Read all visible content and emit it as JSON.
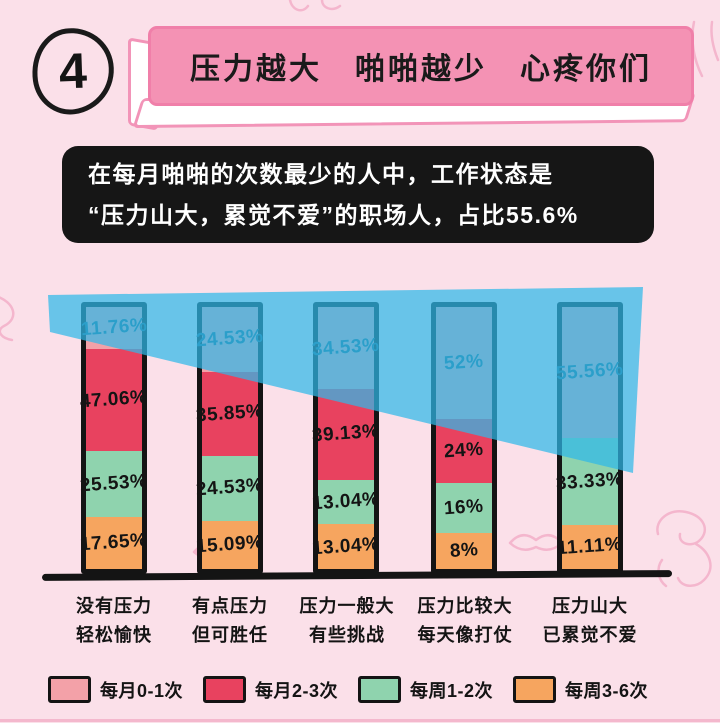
{
  "badge": {
    "number": "4"
  },
  "banner": {
    "title": "压力越大　啪啪越少　心疼你们"
  },
  "callout": {
    "line1": "在每月啪啪的次数最少的人中，工作状态是",
    "line2": "“压力山大，累觉不爱”的职场人，占比55.6%"
  },
  "chart_data": {
    "type": "bar",
    "stacked": true,
    "orientation": "vertical",
    "unit": "%",
    "grid": false,
    "categories": [
      [
        "没有压力",
        "轻松愉快"
      ],
      [
        "有点压力",
        "但可胜任"
      ],
      [
        "压力一般大",
        "有些挑战"
      ],
      [
        "压力比较大",
        "每天像打仗"
      ],
      [
        "压力山大",
        "已累觉不爱"
      ]
    ],
    "series": [
      {
        "name": "每月0-1次",
        "color": "#f3a1a8",
        "values": [
          11.76,
          24.53,
          34.53,
          52,
          55.56
        ],
        "labels": [
          "11.76%",
          "24.53%",
          "34.53%",
          "52%",
          "55.56%"
        ]
      },
      {
        "name": "每月2-3次",
        "color": "#e8425f",
        "values": [
          47.06,
          35.85,
          39.13,
          24,
          0
        ],
        "labels": [
          "47.06%",
          "35.85%",
          "39.13%",
          "24%",
          ""
        ]
      },
      {
        "name": "每周1-2次",
        "color": "#8fd3ae",
        "values": [
          25.53,
          24.53,
          13.04,
          16,
          33.33
        ],
        "labels": [
          "25.53%",
          "24.53%",
          "13.04%",
          "16%",
          "33.33%"
        ]
      },
      {
        "name": "每周3-6次",
        "color": "#f6a55f",
        "values": [
          17.65,
          15.09,
          13.04,
          8,
          11.11
        ],
        "labels": [
          "17.65%",
          "15.09%",
          "13.04%",
          "8%",
          "11.11%"
        ]
      }
    ],
    "trend_band": {
      "meaning": "每月0-1次占比随压力增大而上升",
      "color": "#35b8e9",
      "opacity": 0.72
    },
    "label_color_on_band": "#235d7c",
    "label_color_default": "#141414"
  },
  "legend": {
    "items": [
      {
        "label": "每月0-1次",
        "color": "#f3a1a8"
      },
      {
        "label": "每月2-3次",
        "color": "#e8425f"
      },
      {
        "label": "每周1-2次",
        "color": "#8fd3ae"
      },
      {
        "label": "每周3-6次",
        "color": "#f6a55f"
      }
    ]
  },
  "theme": {
    "background": "#fbe0e9",
    "banner_pink": "#f492b4",
    "callout_bg": "#161616",
    "ink": "#141414",
    "doodle_pink": "#f2a9c4"
  }
}
